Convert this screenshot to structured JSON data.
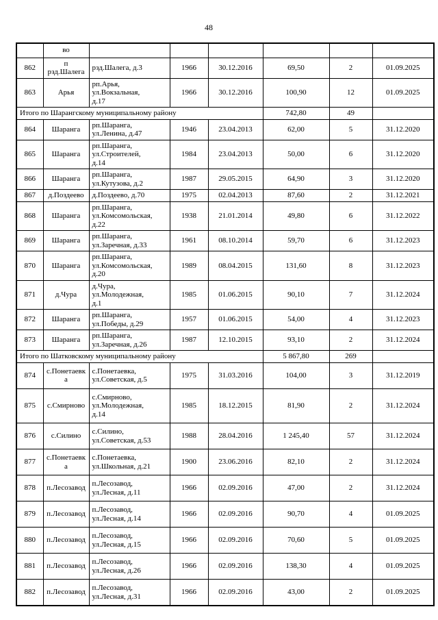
{
  "page": {
    "number": "48"
  },
  "table": {
    "column_keys": [
      "num",
      "settlement",
      "address",
      "year",
      "date",
      "area",
      "apts",
      "end"
    ],
    "rows": [
      {
        "type": "data",
        "partial": true,
        "num": "",
        "settlement": "во",
        "address": "",
        "year": "",
        "date": "",
        "area": "",
        "apts": "",
        "end": ""
      },
      {
        "type": "data",
        "num": "862",
        "settlement": "п\nрзд.Шалега",
        "address": "рзд.Шалега, д.3",
        "year": "1966",
        "date": "30.12.2016",
        "area": "69,50",
        "apts": "2",
        "end": "01.09.2025"
      },
      {
        "type": "data",
        "num": "863",
        "settlement": "Арья",
        "address": "рп.Арья,\nул.Вокзальная,\nд.17",
        "year": "1966",
        "date": "30.12.2016",
        "area": "100,90",
        "apts": "12",
        "end": "01.09.2025"
      },
      {
        "type": "total",
        "total": "Итого по Шарангскому муниципальному району",
        "area": "742,80",
        "apts": "49",
        "end": ""
      },
      {
        "type": "data",
        "num": "864",
        "settlement": "Шаранга",
        "address": "рп.Шаранга,\nул.Ленина, д.47",
        "year": "1946",
        "date": "23.04.2013",
        "area": "62,00",
        "apts": "5",
        "end": "31.12.2020"
      },
      {
        "type": "data",
        "num": "865",
        "settlement": "Шаранга",
        "address": "рп.Шаранга,\nул.Строителей,\nд.14",
        "year": "1984",
        "date": "23.04.2013",
        "area": "50,00",
        "apts": "6",
        "end": "31.12.2020"
      },
      {
        "type": "data",
        "num": "866",
        "settlement": "Шаранга",
        "address": "рп.Шаранга,\nул.Кутузова, д.2",
        "year": "1987",
        "date": "29.05.2015",
        "area": "64,90",
        "apts": "3",
        "end": "31.12.2020"
      },
      {
        "type": "data",
        "num": "867",
        "settlement": "д.Поздеево",
        "address": "д.Поздеево, д.70",
        "year": "1975",
        "date": "02.04.2013",
        "area": "87,60",
        "apts": "2",
        "end": "31.12.2021"
      },
      {
        "type": "data",
        "num": "868",
        "settlement": "Шаранга",
        "address": "рп.Шаранга,\nул.Комсомольская,\nд.22",
        "year": "1938",
        "date": "21.01.2014",
        "area": "49,80",
        "apts": "6",
        "end": "31.12.2022"
      },
      {
        "type": "data",
        "num": "869",
        "settlement": "Шаранга",
        "address": "рп.Шаранга,\nул.Заречная, д.33",
        "year": "1961",
        "date": "08.10.2014",
        "area": "59,70",
        "apts": "6",
        "end": "31.12.2023"
      },
      {
        "type": "data",
        "num": "870",
        "settlement": "Шаранга",
        "address": "рп.Шаранга,\nул.Комсомольская,\nд.20",
        "year": "1989",
        "date": "08.04.2015",
        "area": "131,60",
        "apts": "8",
        "end": "31.12.2023"
      },
      {
        "type": "data",
        "num": "871",
        "settlement": "д.Чура",
        "address": "д.Чура,\nул.Молодежная,\nд.1",
        "year": "1985",
        "date": "01.06.2015",
        "area": "90,10",
        "apts": "7",
        "end": "31.12.2024"
      },
      {
        "type": "data",
        "num": "872",
        "settlement": "Шаранга",
        "address": "рп.Шаранга,\nул.Победы, д.29",
        "year": "1957",
        "date": "01.06.2015",
        "area": "54,00",
        "apts": "4",
        "end": "31.12.2023"
      },
      {
        "type": "data",
        "num": "873",
        "settlement": "Шаранга",
        "address": "рп.Шаранга,\nул.Заречная, д.26",
        "year": "1987",
        "date": "12.10.2015",
        "area": "93,10",
        "apts": "2",
        "end": "31.12.2024"
      },
      {
        "type": "total",
        "total": "Итого по Шатковскому муниципальному району",
        "area": "5 867,80",
        "apts": "269",
        "end": ""
      },
      {
        "type": "data",
        "num": "874",
        "settlement": "с.Понетаевк\nа",
        "address": "с.Понетаевка,\nул.Советская, д.5",
        "year": "1975",
        "date": "31.03.2016",
        "area": "104,00",
        "apts": "3",
        "end": "31.12.2019"
      },
      {
        "type": "data",
        "num": "875",
        "settlement": "с.Смирново",
        "address": "с.Смирново,\nул.Молодежная,\nд.14",
        "year": "1985",
        "date": "18.12.2015",
        "area": "81,90",
        "apts": "2",
        "end": "31.12.2024"
      },
      {
        "type": "data",
        "num": "876",
        "settlement": "с.Силино",
        "address": "с.Силино,\nул.Советская, д.53",
        "year": "1988",
        "date": "28.04.2016",
        "area": "1 245,40",
        "apts": "57",
        "end": "31.12.2024"
      },
      {
        "type": "data",
        "num": "877",
        "settlement": "с.Понетаевк\nа",
        "address": "с.Понетаевка,\nул.Школьная, д.21",
        "year": "1900",
        "date": "23.06.2016",
        "area": "82,10",
        "apts": "2",
        "end": "31.12.2024"
      },
      {
        "type": "data",
        "num": "878",
        "settlement": "п.Лесозавод",
        "address": "п.Лесозавод,\nул.Лесная, д.11",
        "year": "1966",
        "date": "02.09.2016",
        "area": "47,00",
        "apts": "2",
        "end": "31.12.2024"
      },
      {
        "type": "data",
        "num": "879",
        "settlement": "п.Лесозавод",
        "address": "п.Лесозавод,\nул.Лесная, д.14",
        "year": "1966",
        "date": "02.09.2016",
        "area": "90,70",
        "apts": "4",
        "end": "01.09.2025"
      },
      {
        "type": "data",
        "num": "880",
        "settlement": "п.Лесозавод",
        "address": "п.Лесозавод,\nул.Лесная, д.15",
        "year": "1966",
        "date": "02.09.2016",
        "area": "70,60",
        "apts": "5",
        "end": "01.09.2025"
      },
      {
        "type": "data",
        "num": "881",
        "settlement": "п.Лесозавод",
        "address": "п.Лесозавод,\nул.Лесная, д.26",
        "year": "1966",
        "date": "02.09.2016",
        "area": "138,30",
        "apts": "4",
        "end": "01.09.2025"
      },
      {
        "type": "data",
        "num": "882",
        "settlement": "п.Лесозавод",
        "address": "п.Лесозавод,\nул.Лесная, д.31",
        "year": "1966",
        "date": "02.09.2016",
        "area": "43,00",
        "apts": "2",
        "end": "01.09.2025"
      }
    ]
  }
}
